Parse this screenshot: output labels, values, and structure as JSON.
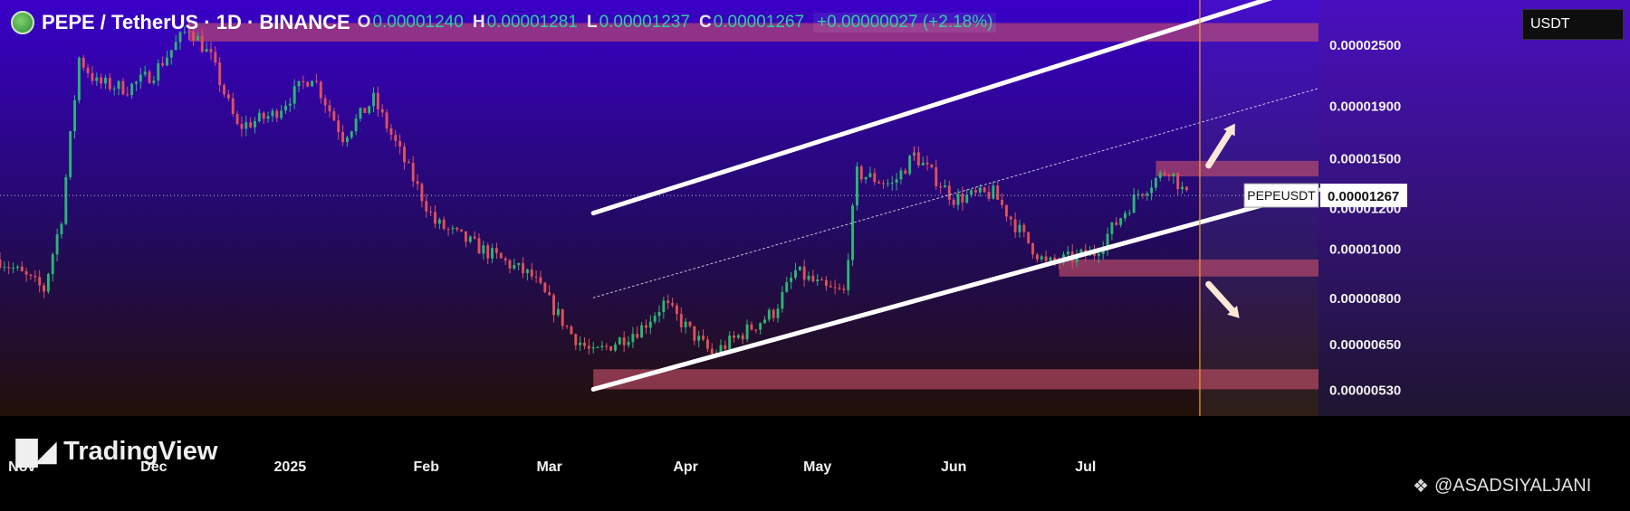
{
  "header": {
    "title": "PEPE / TetherUS · 1D · BINANCE",
    "open_label": "O",
    "open": "0.00001240",
    "high_label": "H",
    "high": "0.00001281",
    "low_label": "L",
    "low": "0.00001237",
    "close_label": "C",
    "close": "0.00001267",
    "change": "+0.00000027 (+2.18%)"
  },
  "currency_button": "USDT",
  "branding": {
    "logo_text": "TradingView",
    "watermark": "@ASADSIYALJANI"
  },
  "colors": {
    "background_top": "#3a00c8",
    "background_bottom": "#211008",
    "candle_up": "#2bb673",
    "candle_down": "#e0505a",
    "zone": "#c8506a",
    "channel": "#ffffff",
    "vline": "#ff9a2e"
  },
  "chart_data": {
    "type": "candlestick",
    "symbol_tag": "PEPEUSDT",
    "last_price_label": "0.00001267",
    "last_price": 1.267e-05,
    "y_scale": "log",
    "ylim": [
      4.7e-06,
      3.05e-05
    ],
    "y_ticks": [
      {
        "value": 2.5e-05,
        "label": "0.00002500"
      },
      {
        "value": 1.9e-05,
        "label": "0.00001900"
      },
      {
        "value": 1.5e-05,
        "label": "0.00001500"
      },
      {
        "value": 1.2e-05,
        "label": "0.00001200"
      },
      {
        "value": 1e-05,
        "label": "0.00001000"
      },
      {
        "value": 8e-06,
        "label": "0.00000800"
      },
      {
        "value": 6.5e-06,
        "label": "0.00000650"
      },
      {
        "value": 5.3e-06,
        "label": "0.00000530"
      }
    ],
    "x_range": [
      "2024-10-27",
      "2025-08-23"
    ],
    "x_ticks": [
      {
        "date": "2024-11-01",
        "label": "Nov"
      },
      {
        "date": "2024-12-01",
        "label": "Dec"
      },
      {
        "date": "2025-01-01",
        "label": "2025"
      },
      {
        "date": "2025-02-01",
        "label": "Feb"
      },
      {
        "date": "2025-03-01",
        "label": "Mar"
      },
      {
        "date": "2025-04-01",
        "label": "Apr"
      },
      {
        "date": "2025-05-01",
        "label": "May"
      },
      {
        "date": "2025-06-01",
        "label": "Jun"
      },
      {
        "date": "2025-07-01",
        "label": "Jul"
      }
    ],
    "price_path": [
      [
        "2024-10-27",
        9.5e-06
      ],
      [
        "2024-11-06",
        8.3e-06
      ],
      [
        "2024-11-10",
        1.15e-05
      ],
      [
        "2024-11-14",
        2.35e-05
      ],
      [
        "2024-11-18",
        2.1e-05
      ],
      [
        "2024-11-25",
        2.05e-05
      ],
      [
        "2024-12-01",
        2.2e-05
      ],
      [
        "2024-12-09",
        2.7e-05
      ],
      [
        "2024-12-14",
        2.35e-05
      ],
      [
        "2024-12-20",
        1.72e-05
      ],
      [
        "2024-12-28",
        1.82e-05
      ],
      [
        "2025-01-06",
        2.18e-05
      ],
      [
        "2025-01-13",
        1.65e-05
      ],
      [
        "2025-01-20",
        1.95e-05
      ],
      [
        "2025-02-03",
        1.12e-05
      ],
      [
        "2025-02-15",
        9.8e-06
      ],
      [
        "2025-02-25",
        8.8e-06
      ],
      [
        "2025-03-06",
        6.8e-06
      ],
      [
        "2025-03-11",
        6.2e-06
      ],
      [
        "2025-03-22",
        7e-06
      ],
      [
        "2025-03-27",
        7.8e-06
      ],
      [
        "2025-04-07",
        6.2e-06
      ],
      [
        "2025-04-21",
        7.5e-06
      ],
      [
        "2025-04-26",
        9e-06
      ],
      [
        "2025-05-03",
        8.3e-06
      ],
      [
        "2025-05-07",
        8.2e-06
      ],
      [
        "2025-05-10",
        1.4e-05
      ],
      [
        "2025-05-18",
        1.33e-05
      ],
      [
        "2025-05-23",
        1.52e-05
      ],
      [
        "2025-06-01",
        1.25e-05
      ],
      [
        "2025-06-10",
        1.28e-05
      ],
      [
        "2025-06-17",
        1.05e-05
      ],
      [
        "2025-06-22",
        9.3e-06
      ],
      [
        "2025-07-03",
        9.8e-06
      ],
      [
        "2025-07-13",
        1.28e-05
      ],
      [
        "2025-07-20",
        1.43e-05
      ],
      [
        "2025-07-24",
        1.26e-05
      ]
    ],
    "key_candles": {
      "ath_high": 2.82e-05,
      "may_high": 1.58e-05
    },
    "zones": [
      {
        "from": "2024-12-09",
        "to": "2025-08-23",
        "low": 2.53e-05,
        "high": 2.75e-05
      },
      {
        "from": "2025-07-17",
        "to": "2025-08-23",
        "low": 1.38e-05,
        "high": 1.48e-05
      },
      {
        "from": "2025-06-25",
        "to": "2025-08-23",
        "low": 8.8e-06,
        "high": 9.5e-06
      },
      {
        "from": "2025-03-11",
        "to": "2025-08-23",
        "low": 5.3e-06,
        "high": 5.8e-06
      }
    ],
    "channel": {
      "upper": [
        [
          "2025-03-11",
          1.17e-05
        ],
        [
          "2025-08-16",
          3.15e-05
        ]
      ],
      "lower": [
        [
          "2025-03-11",
          5.3e-06
        ],
        [
          "2025-08-23",
          1.3e-05
        ]
      ],
      "median": [
        [
          "2025-03-11",
          8e-06
        ],
        [
          "2025-08-23",
          2.05e-05
        ]
      ]
    },
    "vertical_marker": "2025-07-27",
    "arrows": [
      {
        "from": [
          "2025-07-29",
          1.45e-05
        ],
        "to": [
          "2025-08-04",
          1.75e-05
        ],
        "dir": "up"
      },
      {
        "from": [
          "2025-07-29",
          8.5e-06
        ],
        "to": [
          "2025-08-05",
          7.3e-06
        ],
        "dir": "down"
      }
    ]
  }
}
